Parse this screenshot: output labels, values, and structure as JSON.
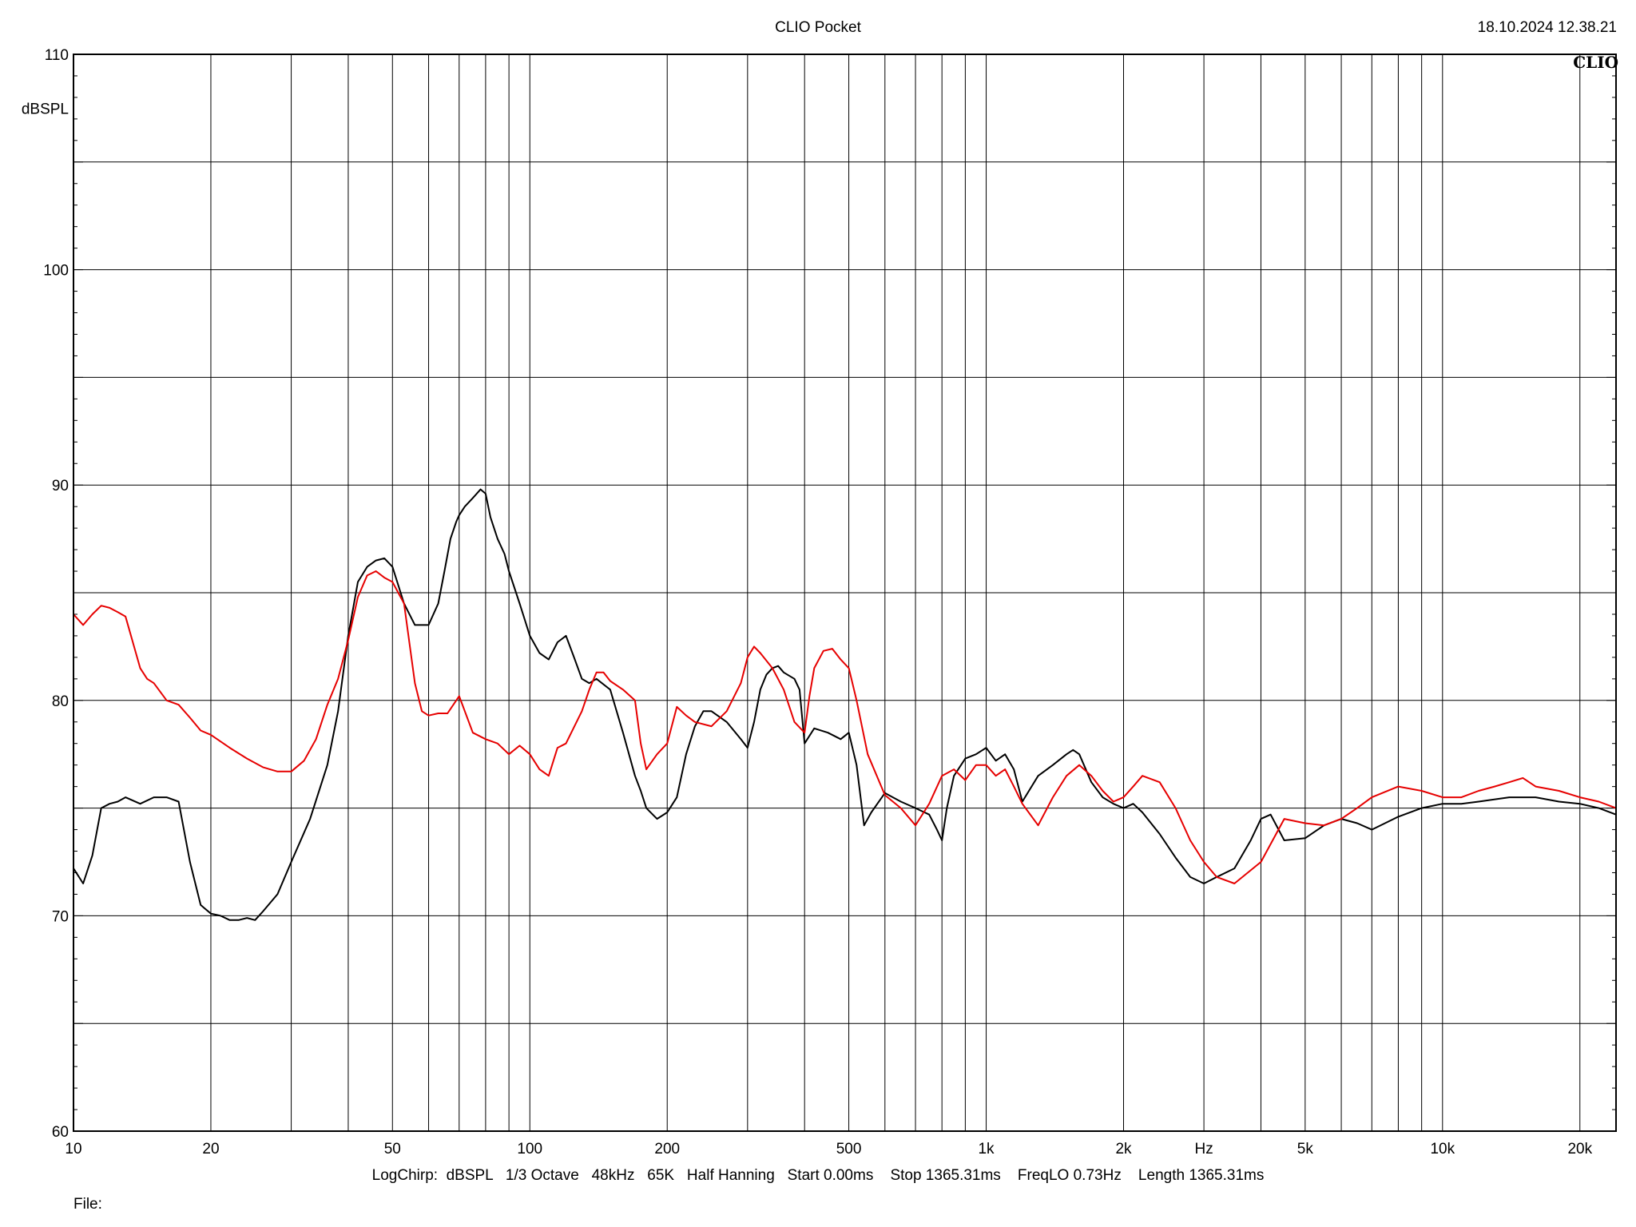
{
  "header": {
    "title": "CLIO Pocket",
    "timestamp": "18.10.2024 12.38.21",
    "logo": "CLIO"
  },
  "footer": {
    "info": "LogChirp:  dBSPL   1/3 Octave   48kHz   65K   Half Hanning   Start 0.00ms    Stop 1365.31ms    FreqLO 0.73Hz    Length 1365.31ms",
    "file_label": "File:"
  },
  "chart_data": {
    "type": "line",
    "title": "CLIO Pocket",
    "xlabel": "Hz",
    "ylabel": "dBSPL",
    "xscale": "log",
    "xlim": [
      10,
      24000
    ],
    "ylim": [
      60,
      110
    ],
    "grid": true,
    "x_ticks": [
      10,
      20,
      50,
      100,
      200,
      500,
      1000,
      2000,
      5000,
      10000,
      20000
    ],
    "x_tick_labels": [
      "10",
      "20",
      "50",
      "100",
      "200",
      "500",
      "1k",
      "2k",
      "5k",
      "10k",
      "20k"
    ],
    "y_ticks": [
      60,
      70,
      80,
      90,
      100,
      110
    ],
    "y_tick_labels": [
      "60",
      "70",
      "80",
      "90",
      "100",
      "110"
    ],
    "series": [
      {
        "color": "#000000",
        "x": [
          10,
          10.5,
          11,
          11.5,
          12,
          12.5,
          13,
          14,
          15,
          16,
          17,
          18,
          19,
          20,
          21,
          22,
          23,
          24,
          25,
          26,
          28,
          30,
          33,
          36,
          38,
          40,
          42,
          44,
          46,
          48,
          50,
          53,
          56,
          60,
          63,
          65,
          67,
          69,
          70,
          72,
          75,
          78,
          80,
          82,
          85,
          88,
          90,
          95,
          100,
          105,
          110,
          115,
          120,
          125,
          130,
          135,
          140,
          150,
          160,
          170,
          175,
          180,
          190,
          200,
          210,
          220,
          230,
          240,
          250,
          270,
          290,
          300,
          310,
          320,
          330,
          340,
          350,
          360,
          380,
          390,
          400,
          420,
          450,
          480,
          500,
          520,
          540,
          560,
          600,
          650,
          700,
          750,
          780,
          800,
          820,
          850,
          900,
          950,
          1000,
          1050,
          1100,
          1150,
          1200,
          1300,
          1400,
          1500,
          1550,
          1600,
          1700,
          1800,
          1900,
          2000,
          2100,
          2200,
          2400,
          2600,
          2800,
          3000,
          3200,
          3500,
          3800,
          4000,
          4200,
          4500,
          5000,
          5500,
          6000,
          6500,
          7000,
          8000,
          9000,
          10000,
          11000,
          12000,
          14000,
          16000,
          18000,
          20000,
          22000,
          24000
        ],
        "y": [
          72.2,
          71.5,
          72.8,
          75.0,
          75.2,
          75.3,
          75.5,
          75.2,
          75.5,
          75.5,
          75.3,
          72.5,
          70.5,
          70.1,
          70.0,
          69.8,
          69.8,
          69.9,
          69.8,
          70.2,
          71.0,
          72.5,
          74.5,
          77.0,
          79.5,
          83.0,
          85.5,
          86.2,
          86.5,
          86.6,
          86.2,
          84.5,
          83.5,
          83.5,
          84.5,
          86.0,
          87.5,
          88.3,
          88.6,
          89.0,
          89.4,
          89.8,
          89.6,
          88.5,
          87.5,
          86.8,
          86.0,
          84.5,
          83.0,
          82.2,
          81.9,
          82.7,
          83.0,
          82.0,
          81.0,
          80.8,
          81.0,
          80.5,
          78.5,
          76.5,
          75.8,
          75.0,
          74.5,
          74.8,
          75.5,
          77.5,
          78.8,
          79.5,
          79.5,
          79.0,
          78.2,
          77.8,
          79.0,
          80.5,
          81.2,
          81.5,
          81.6,
          81.3,
          81.0,
          80.5,
          78.0,
          78.7,
          78.5,
          78.2,
          78.5,
          77.0,
          74.2,
          74.8,
          75.7,
          75.3,
          75.0,
          74.7,
          74.0,
          73.5,
          75.0,
          76.5,
          77.3,
          77.5,
          77.8,
          77.2,
          77.5,
          76.8,
          75.3,
          76.5,
          77.0,
          77.5,
          77.7,
          77.5,
          76.2,
          75.5,
          75.2,
          75.0,
          75.2,
          74.8,
          73.8,
          72.7,
          71.8,
          71.5,
          71.8,
          72.2,
          73.5,
          74.5,
          74.7,
          73.5,
          73.6,
          74.2,
          74.5,
          74.3,
          74.0,
          74.6,
          75.0,
          75.2,
          75.2,
          75.3,
          75.5,
          75.5,
          75.3,
          75.2,
          75.0,
          74.7
        ]
      },
      {
        "color": "#e60000",
        "x": [
          10,
          10.5,
          11,
          11.5,
          12,
          12.5,
          13,
          14,
          14.5,
          15,
          16,
          17,
          18,
          19,
          20,
          22,
          24,
          26,
          28,
          30,
          32,
          34,
          36,
          38,
          40,
          42,
          44,
          46,
          48,
          50,
          53,
          56,
          58,
          60,
          63,
          66,
          70,
          75,
          80,
          85,
          90,
          95,
          100,
          105,
          110,
          115,
          120,
          130,
          135,
          140,
          145,
          150,
          160,
          170,
          175,
          180,
          190,
          200,
          210,
          220,
          230,
          250,
          270,
          290,
          300,
          310,
          320,
          340,
          360,
          380,
          400,
          410,
          420,
          440,
          460,
          480,
          500,
          520,
          550,
          600,
          650,
          700,
          750,
          800,
          850,
          900,
          950,
          1000,
          1050,
          1100,
          1150,
          1200,
          1300,
          1400,
          1500,
          1600,
          1700,
          1800,
          1900,
          2000,
          2100,
          2200,
          2400,
          2600,
          2800,
          3000,
          3200,
          3500,
          4000,
          4500,
          5000,
          5500,
          6000,
          6500,
          7000,
          8000,
          9000,
          10000,
          11000,
          12000,
          13000,
          14000,
          15000,
          16000,
          18000,
          20000,
          22000,
          24000
        ],
        "y": [
          84.0,
          83.5,
          84.0,
          84.4,
          84.3,
          84.1,
          83.9,
          81.5,
          81.0,
          80.8,
          80.0,
          79.8,
          79.2,
          78.6,
          78.4,
          77.8,
          77.3,
          76.9,
          76.7,
          76.7,
          77.2,
          78.2,
          79.8,
          81.0,
          82.8,
          84.8,
          85.8,
          86.0,
          85.7,
          85.5,
          84.5,
          80.8,
          79.5,
          79.3,
          79.4,
          79.4,
          80.2,
          78.5,
          78.2,
          78.0,
          77.5,
          77.9,
          77.5,
          76.8,
          76.5,
          77.8,
          78.0,
          79.5,
          80.5,
          81.3,
          81.3,
          80.9,
          80.5,
          80.0,
          78.0,
          76.8,
          77.5,
          78.0,
          79.7,
          79.3,
          79.0,
          78.8,
          79.5,
          80.8,
          82.0,
          82.5,
          82.2,
          81.5,
          80.5,
          79.0,
          78.5,
          80.2,
          81.5,
          82.3,
          82.4,
          81.9,
          81.5,
          80.0,
          77.5,
          75.6,
          75.0,
          74.2,
          75.2,
          76.5,
          76.8,
          76.3,
          77.0,
          77.0,
          76.5,
          76.8,
          76.0,
          75.2,
          74.2,
          75.5,
          76.5,
          77.0,
          76.5,
          75.8,
          75.3,
          75.5,
          76.0,
          76.5,
          76.2,
          75.0,
          73.5,
          72.5,
          71.8,
          71.5,
          72.5,
          74.5,
          74.3,
          74.2,
          74.5,
          75.0,
          75.5,
          76.0,
          75.8,
          75.5,
          75.5,
          75.8,
          76.0,
          76.2,
          76.4,
          76.0,
          75.8,
          75.5,
          75.3,
          75.0
        ]
      }
    ]
  }
}
